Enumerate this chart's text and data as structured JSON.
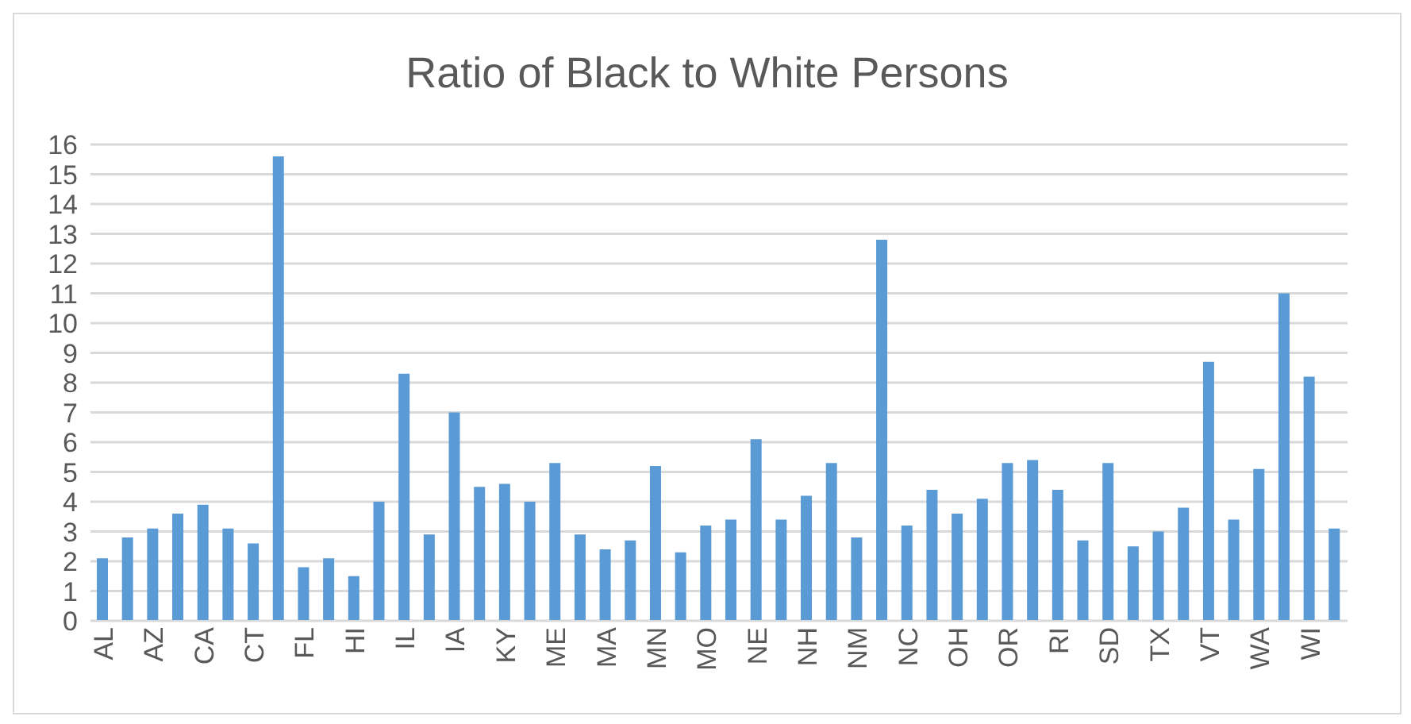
{
  "chart_data": {
    "type": "bar",
    "title": "Ratio of Black to White Persons",
    "categories": [
      "AL",
      null,
      "AZ",
      null,
      "CA",
      null,
      "CT",
      null,
      "FL",
      null,
      "HI",
      null,
      "IL",
      null,
      "IA",
      null,
      "KY",
      null,
      "ME",
      null,
      "MA",
      null,
      "MN",
      null,
      "MO",
      null,
      "NE",
      null,
      "NH",
      null,
      "NM",
      null,
      "NC",
      null,
      "OH",
      null,
      "OR",
      null,
      "RI",
      null,
      "SD",
      null,
      "TX",
      null,
      "VT",
      null,
      "WA",
      null,
      "WI",
      null
    ],
    "values": [
      2.1,
      2.8,
      3.1,
      3.6,
      3.9,
      3.1,
      2.6,
      15.6,
      1.8,
      2.1,
      1.5,
      4.0,
      8.3,
      2.9,
      7.0,
      4.5,
      4.6,
      4.0,
      5.3,
      2.9,
      2.4,
      2.7,
      5.2,
      2.3,
      3.2,
      3.4,
      6.1,
      3.4,
      4.2,
      5.3,
      2.8,
      12.8,
      3.2,
      4.4,
      3.6,
      4.1,
      5.3,
      5.4,
      4.4,
      2.7,
      5.3,
      2.5,
      3.0,
      3.8,
      8.7,
      3.4,
      5.1,
      11.0,
      8.2,
      3.1
    ],
    "color": "#5b9bd5",
    "ylim": [
      0,
      16
    ],
    "yticks": [
      0,
      1,
      2,
      3,
      4,
      5,
      6,
      7,
      8,
      9,
      10,
      11,
      12,
      13,
      14,
      15,
      16
    ],
    "grid": "y"
  }
}
